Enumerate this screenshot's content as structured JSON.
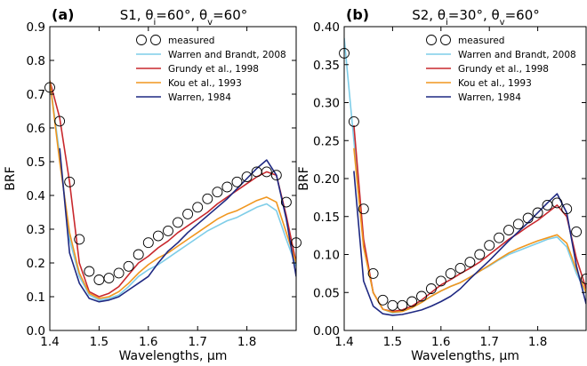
{
  "chart_data": [
    {
      "type": "line",
      "panel_label": "(a)",
      "title": "S1, θi=60°, θv=60°",
      "xlabel": "Wavelengths, μm",
      "ylabel": "BRF",
      "xlim": [
        1.4,
        1.9
      ],
      "ylim": [
        0.0,
        0.9
      ],
      "xticks": [
        "1.4",
        "1.5",
        "1.6",
        "1.7",
        "1.8"
      ],
      "yticks": [
        "0.0",
        "0.1",
        "0.2",
        "0.3",
        "0.4",
        "0.5",
        "0.6",
        "0.7",
        "0.8",
        "0.9"
      ],
      "legend_position": "top-right",
      "grid": false,
      "measured": {
        "name": "measured",
        "marker": "open-circle",
        "x": [
          1.4,
          1.42,
          1.44,
          1.46,
          1.48,
          1.5,
          1.52,
          1.54,
          1.56,
          1.58,
          1.6,
          1.62,
          1.64,
          1.66,
          1.68,
          1.7,
          1.72,
          1.74,
          1.76,
          1.78,
          1.8,
          1.82,
          1.84,
          1.86,
          1.88,
          1.9
        ],
        "y": [
          0.72,
          0.62,
          0.44,
          0.27,
          0.175,
          0.15,
          0.155,
          0.17,
          0.19,
          0.225,
          0.26,
          0.28,
          0.295,
          0.32,
          0.345,
          0.365,
          0.39,
          0.41,
          0.425,
          0.44,
          0.455,
          0.47,
          0.47,
          0.46,
          0.38,
          0.26
        ]
      },
      "series": [
        {
          "name": "Warren and Brandt, 2008",
          "color": "#7ecde8",
          "x": [
            1.4,
            1.42,
            1.44,
            1.46,
            1.48,
            1.5,
            1.52,
            1.54,
            1.56,
            1.58,
            1.6,
            1.62,
            1.64,
            1.66,
            1.68,
            1.7,
            1.72,
            1.74,
            1.76,
            1.78,
            1.8,
            1.82,
            1.84,
            1.86,
            1.88,
            1.9
          ],
          "y": [
            0.74,
            0.52,
            0.27,
            0.16,
            0.105,
            0.09,
            0.095,
            0.105,
            0.13,
            0.16,
            0.18,
            0.195,
            0.215,
            0.235,
            0.255,
            0.275,
            0.295,
            0.31,
            0.325,
            0.335,
            0.35,
            0.365,
            0.375,
            0.355,
            0.27,
            0.19
          ]
        },
        {
          "name": "Grundy et al., 1998",
          "color": "#c8282d",
          "x": [
            1.4,
            1.42,
            1.44,
            1.46,
            1.48,
            1.5,
            1.52,
            1.54,
            1.56,
            1.58,
            1.6,
            1.62,
            1.64,
            1.66,
            1.68,
            1.7,
            1.72,
            1.74,
            1.76,
            1.78,
            1.8,
            1.82,
            1.84,
            1.86,
            1.88,
            1.9
          ],
          "y": [
            0.74,
            0.63,
            0.44,
            0.2,
            0.115,
            0.1,
            0.11,
            0.13,
            0.165,
            0.2,
            0.22,
            0.245,
            0.265,
            0.29,
            0.31,
            0.33,
            0.35,
            0.375,
            0.395,
            0.415,
            0.435,
            0.455,
            0.47,
            0.46,
            0.34,
            0.2
          ]
        },
        {
          "name": "Kou et al., 1993",
          "color": "#f0961e",
          "x": [
            1.4,
            1.42,
            1.44,
            1.46,
            1.48,
            1.5,
            1.52,
            1.54,
            1.56,
            1.58,
            1.6,
            1.62,
            1.64,
            1.66,
            1.68,
            1.7,
            1.72,
            1.74,
            1.76,
            1.78,
            1.8,
            1.82,
            1.84,
            1.86,
            1.88,
            1.9
          ],
          "y": [
            0.74,
            0.5,
            0.29,
            0.17,
            0.11,
            0.095,
            0.1,
            0.115,
            0.14,
            0.17,
            0.195,
            0.215,
            0.23,
            0.25,
            0.27,
            0.29,
            0.31,
            0.33,
            0.345,
            0.355,
            0.37,
            0.385,
            0.395,
            0.38,
            0.29,
            0.2
          ]
        },
        {
          "name": "Warren, 1984",
          "color": "#1e2882",
          "x": [
            1.42,
            1.44,
            1.46,
            1.48,
            1.5,
            1.52,
            1.54,
            1.56,
            1.58,
            1.6,
            1.62,
            1.64,
            1.66,
            1.68,
            1.7,
            1.72,
            1.74,
            1.76,
            1.78,
            1.8,
            1.82,
            1.84,
            1.86,
            1.88,
            1.9
          ],
          "y": [
            0.54,
            0.23,
            0.14,
            0.095,
            0.085,
            0.09,
            0.1,
            0.12,
            0.14,
            0.16,
            0.2,
            0.235,
            0.26,
            0.29,
            0.315,
            0.34,
            0.365,
            0.39,
            0.42,
            0.45,
            0.48,
            0.505,
            0.46,
            0.33,
            0.16
          ]
        }
      ]
    },
    {
      "type": "line",
      "panel_label": "(b)",
      "title": "S2, θi=30°, θv=60°",
      "xlabel": "Wavelengths, μm",
      "ylabel": "BRF",
      "xlim": [
        1.4,
        1.9
      ],
      "ylim": [
        0.0,
        0.4
      ],
      "xticks": [
        "1.4",
        "1.5",
        "1.6",
        "1.7",
        "1.8"
      ],
      "yticks": [
        "0.00",
        "0.05",
        "0.10",
        "0.15",
        "0.20",
        "0.25",
        "0.30",
        "0.35",
        "0.40"
      ],
      "legend_position": "top-right",
      "grid": false,
      "measured": {
        "name": "measured",
        "marker": "open-circle",
        "x": [
          1.4,
          1.42,
          1.44,
          1.46,
          1.48,
          1.5,
          1.52,
          1.54,
          1.56,
          1.58,
          1.6,
          1.62,
          1.64,
          1.66,
          1.68,
          1.7,
          1.72,
          1.74,
          1.76,
          1.78,
          1.8,
          1.82,
          1.84,
          1.86,
          1.88,
          1.9
        ],
        "y": [
          0.365,
          0.275,
          0.16,
          0.075,
          0.04,
          0.033,
          0.033,
          0.038,
          0.045,
          0.055,
          0.065,
          0.075,
          0.082,
          0.09,
          0.1,
          0.112,
          0.122,
          0.132,
          0.14,
          0.148,
          0.155,
          0.165,
          0.168,
          0.16,
          0.13,
          0.068
        ]
      },
      "series": [
        {
          "name": "Warren and Brandt, 2008",
          "color": "#7ecde8",
          "x": [
            1.4,
            1.42,
            1.44,
            1.46,
            1.48,
            1.5,
            1.52,
            1.54,
            1.56,
            1.58,
            1.6,
            1.62,
            1.64,
            1.66,
            1.68,
            1.7,
            1.72,
            1.74,
            1.76,
            1.78,
            1.8,
            1.82,
            1.84,
            1.86,
            1.88,
            1.9
          ],
          "y": [
            0.385,
            0.25,
            0.11,
            0.05,
            0.028,
            0.023,
            0.025,
            0.03,
            0.038,
            0.045,
            0.052,
            0.058,
            0.063,
            0.07,
            0.078,
            0.085,
            0.093,
            0.1,
            0.105,
            0.11,
            0.115,
            0.12,
            0.123,
            0.11,
            0.075,
            0.05
          ]
        },
        {
          "name": "Grundy et al., 1998",
          "color": "#c8282d",
          "x": [
            1.42,
            1.44,
            1.46,
            1.48,
            1.5,
            1.52,
            1.54,
            1.56,
            1.58,
            1.6,
            1.62,
            1.64,
            1.66,
            1.68,
            1.7,
            1.72,
            1.74,
            1.76,
            1.78,
            1.8,
            1.82,
            1.84,
            1.86,
            1.88,
            1.9
          ],
          "y": [
            0.27,
            0.12,
            0.05,
            0.028,
            0.025,
            0.027,
            0.032,
            0.04,
            0.05,
            0.06,
            0.067,
            0.075,
            0.082,
            0.09,
            0.1,
            0.11,
            0.12,
            0.128,
            0.137,
            0.145,
            0.155,
            0.165,
            0.15,
            0.095,
            0.055
          ]
        },
        {
          "name": "Kou et al., 1993",
          "color": "#f0961e",
          "x": [
            1.42,
            1.44,
            1.46,
            1.48,
            1.5,
            1.52,
            1.54,
            1.56,
            1.58,
            1.6,
            1.62,
            1.64,
            1.66,
            1.68,
            1.7,
            1.72,
            1.74,
            1.76,
            1.78,
            1.8,
            1.82,
            1.84,
            1.86,
            1.88,
            1.9
          ],
          "y": [
            0.24,
            0.11,
            0.05,
            0.028,
            0.024,
            0.025,
            0.03,
            0.037,
            0.045,
            0.052,
            0.058,
            0.063,
            0.07,
            0.078,
            0.086,
            0.094,
            0.102,
            0.108,
            0.113,
            0.118,
            0.122,
            0.126,
            0.115,
            0.08,
            0.05
          ]
        },
        {
          "name": "Warren, 1984",
          "color": "#1e2882",
          "x": [
            1.42,
            1.44,
            1.46,
            1.48,
            1.5,
            1.52,
            1.54,
            1.56,
            1.58,
            1.6,
            1.62,
            1.64,
            1.66,
            1.68,
            1.7,
            1.72,
            1.74,
            1.76,
            1.78,
            1.8,
            1.82,
            1.84,
            1.86,
            1.88,
            1.9
          ],
          "y": [
            0.21,
            0.065,
            0.032,
            0.022,
            0.02,
            0.021,
            0.024,
            0.027,
            0.032,
            0.038,
            0.045,
            0.055,
            0.068,
            0.08,
            0.092,
            0.105,
            0.118,
            0.13,
            0.142,
            0.155,
            0.168,
            0.18,
            0.155,
            0.085,
            0.035
          ]
        }
      ]
    }
  ]
}
